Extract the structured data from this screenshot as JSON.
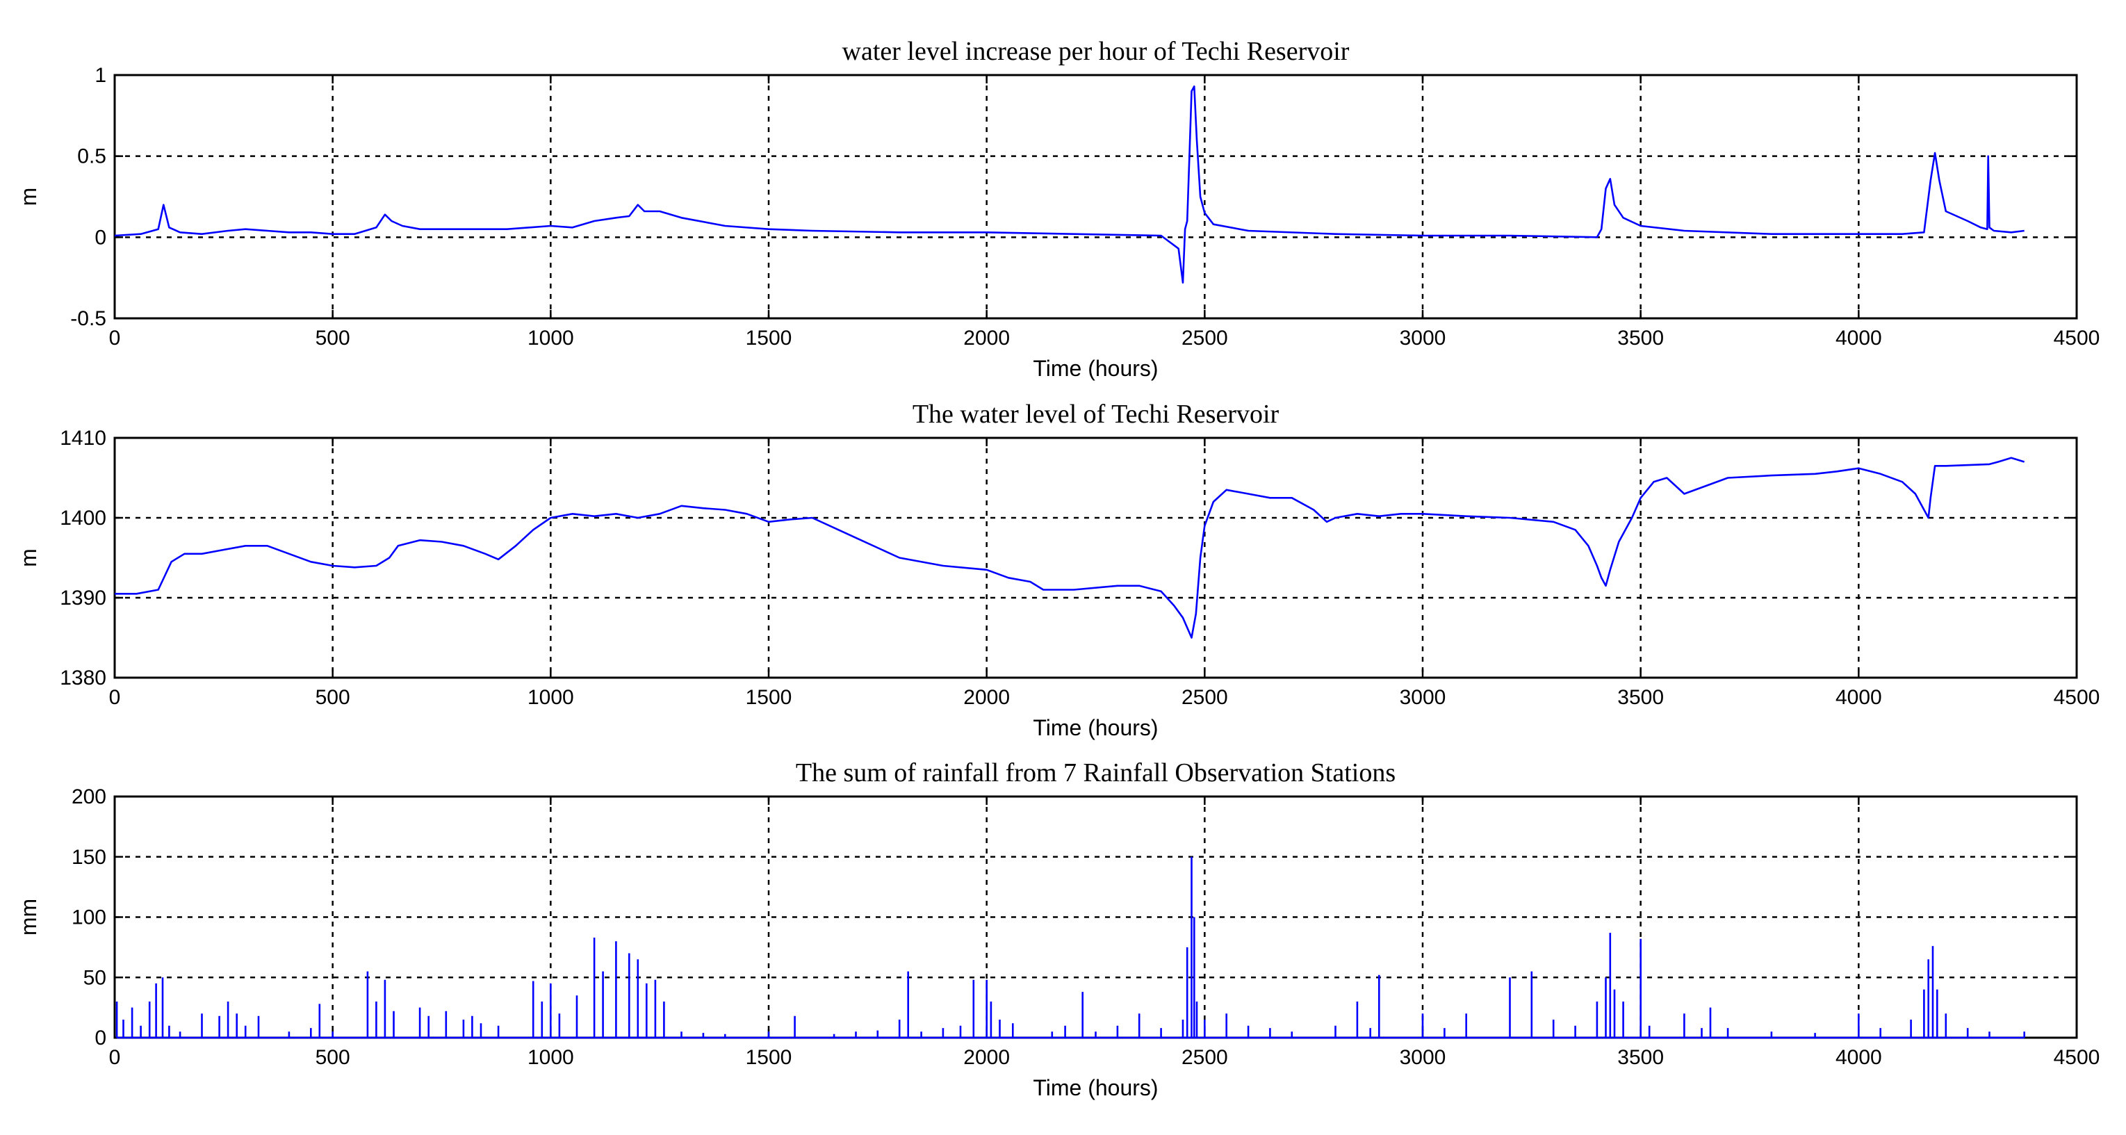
{
  "chart_data": [
    {
      "type": "line",
      "title": "water level increase per hour of Techi Reservoir",
      "xlabel": "Time (hours)",
      "ylabel": "m",
      "xlim": [
        0,
        4500
      ],
      "ylim": [
        -0.5,
        1
      ],
      "xticks": [
        0,
        500,
        1000,
        1500,
        2000,
        2500,
        3000,
        3500,
        4000,
        4500
      ],
      "yticks": [
        -0.5,
        0,
        0.5,
        1
      ],
      "ytick_labels": [
        "-0.5",
        "0",
        "0.5",
        "1"
      ],
      "grid": true,
      "color": "#0000ff",
      "series": [
        {
          "x": [
            0,
            60,
            100,
            112,
            125,
            150,
            200,
            260,
            300,
            350,
            400,
            450,
            500,
            550,
            600,
            620,
            635,
            660,
            700,
            800,
            900,
            1000,
            1050,
            1100,
            1150,
            1180,
            1200,
            1215,
            1250,
            1300,
            1400,
            1500,
            1600,
            1800,
            2000,
            2200,
            2400,
            2440,
            2450,
            2455,
            2460,
            2465,
            2470,
            2476,
            2482,
            2490,
            2500,
            2520,
            2600,
            2800,
            3000,
            3200,
            3400,
            3410,
            3420,
            3430,
            3440,
            3460,
            3500,
            3600,
            3800,
            4000,
            4100,
            4150,
            4165,
            4175,
            4185,
            4200,
            4250,
            4280,
            4295,
            4297,
            4300,
            4310,
            4350,
            4380
          ],
          "y": [
            0.01,
            0.02,
            0.05,
            0.2,
            0.06,
            0.03,
            0.02,
            0.04,
            0.05,
            0.04,
            0.03,
            0.03,
            0.02,
            0.02,
            0.06,
            0.14,
            0.1,
            0.07,
            0.05,
            0.05,
            0.05,
            0.07,
            0.06,
            0.1,
            0.12,
            0.13,
            0.2,
            0.16,
            0.16,
            0.12,
            0.07,
            0.05,
            0.04,
            0.03,
            0.03,
            0.02,
            0.01,
            -0.07,
            -0.28,
            0.05,
            0.1,
            0.5,
            0.9,
            0.93,
            0.6,
            0.25,
            0.15,
            0.08,
            0.04,
            0.02,
            0.01,
            0.01,
            0.0,
            0.05,
            0.3,
            0.36,
            0.2,
            0.12,
            0.07,
            0.04,
            0.02,
            0.02,
            0.02,
            0.03,
            0.35,
            0.52,
            0.35,
            0.16,
            0.1,
            0.06,
            0.05,
            0.5,
            0.06,
            0.04,
            0.03,
            0.04
          ]
        }
      ]
    },
    {
      "type": "line",
      "title": "The water level of Techi Reservoir",
      "xlabel": "Time (hours)",
      "ylabel": "m",
      "xlim": [
        0,
        4500
      ],
      "ylim": [
        1380,
        1410
      ],
      "xticks": [
        0,
        500,
        1000,
        1500,
        2000,
        2500,
        3000,
        3500,
        4000,
        4500
      ],
      "yticks": [
        1380,
        1390,
        1400,
        1410
      ],
      "ytick_labels": [
        "1380",
        "1390",
        "1400",
        "1410"
      ],
      "grid": true,
      "color": "#0000ff",
      "series": [
        {
          "x": [
            0,
            50,
            100,
            130,
            160,
            200,
            250,
            300,
            350,
            400,
            450,
            500,
            550,
            600,
            630,
            650,
            700,
            750,
            800,
            850,
            880,
            920,
            960,
            1000,
            1050,
            1100,
            1150,
            1200,
            1250,
            1300,
            1350,
            1400,
            1450,
            1500,
            1550,
            1600,
            1700,
            1800,
            1900,
            2000,
            2050,
            2100,
            2130,
            2200,
            2300,
            2350,
            2400,
            2430,
            2450,
            2470,
            2480,
            2490,
            2500,
            2520,
            2550,
            2600,
            2650,
            2700,
            2750,
            2780,
            2800,
            2850,
            2900,
            2950,
            3000,
            3100,
            3200,
            3300,
            3350,
            3380,
            3400,
            3410,
            3420,
            3430,
            3450,
            3480,
            3500,
            3530,
            3560,
            3580,
            3600,
            3650,
            3700,
            3800,
            3900,
            3950,
            4000,
            4050,
            4100,
            4130,
            4150,
            4160,
            4165,
            4175,
            4200,
            4300,
            4320,
            4350,
            4380
          ],
          "y": [
            1390.5,
            1390.5,
            1391.0,
            1394.5,
            1395.5,
            1395.5,
            1396.0,
            1396.5,
            1396.5,
            1395.5,
            1394.5,
            1394.0,
            1393.8,
            1394.0,
            1395.0,
            1396.5,
            1397.2,
            1397.0,
            1396.5,
            1395.5,
            1394.8,
            1396.5,
            1398.5,
            1400.0,
            1400.5,
            1400.2,
            1400.5,
            1400.0,
            1400.5,
            1401.5,
            1401.2,
            1401.0,
            1400.5,
            1399.5,
            1399.8,
            1400.0,
            1397.5,
            1395.0,
            1394.0,
            1393.5,
            1392.5,
            1392.0,
            1391.0,
            1391.0,
            1391.5,
            1391.5,
            1390.8,
            1389.0,
            1387.5,
            1385.0,
            1388.0,
            1395.0,
            1399.0,
            1402.0,
            1403.5,
            1403.0,
            1402.5,
            1402.5,
            1401.0,
            1399.5,
            1400.0,
            1400.5,
            1400.2,
            1400.5,
            1400.5,
            1400.2,
            1400.0,
            1399.5,
            1398.5,
            1396.5,
            1394.0,
            1392.5,
            1391.5,
            1393.5,
            1397.0,
            1400.0,
            1402.5,
            1404.5,
            1405.0,
            1404.0,
            1403.0,
            1404.0,
            1405.0,
            1405.3,
            1405.5,
            1405.8,
            1406.2,
            1405.5,
            1404.5,
            1403.0,
            1401.0,
            1400.0,
            1402.5,
            1406.5,
            1406.5,
            1406.7,
            1407.0,
            1407.5,
            1407.0
          ]
        }
      ]
    },
    {
      "type": "line",
      "title": "The sum of rainfall from 7 Rainfall Observation Stations",
      "xlabel": "Time (hours)",
      "ylabel": "mm",
      "xlim": [
        0,
        4500
      ],
      "ylim": [
        0,
        200
      ],
      "xticks": [
        0,
        500,
        1000,
        1500,
        2000,
        2500,
        3000,
        3500,
        4000,
        4500
      ],
      "yticks": [
        0,
        50,
        100,
        150,
        200
      ],
      "ytick_labels": [
        "0",
        "50",
        "100",
        "150",
        "200"
      ],
      "grid": true,
      "color": "#0000ff",
      "series": [
        {
          "x": [
            5,
            20,
            40,
            60,
            80,
            95,
            110,
            125,
            150,
            200,
            240,
            260,
            280,
            300,
            330,
            400,
            450,
            470,
            500,
            580,
            600,
            620,
            640,
            700,
            720,
            760,
            800,
            820,
            840,
            880,
            960,
            980,
            1000,
            1020,
            1060,
            1100,
            1120,
            1150,
            1180,
            1200,
            1220,
            1240,
            1260,
            1300,
            1350,
            1400,
            1500,
            1560,
            1650,
            1700,
            1750,
            1800,
            1820,
            1850,
            1900,
            1940,
            1970,
            2000,
            2010,
            2030,
            2060,
            2150,
            2180,
            2220,
            2250,
            2300,
            2350,
            2400,
            2450,
            2460,
            2470,
            2476,
            2482,
            2500,
            2550,
            2600,
            2650,
            2700,
            2800,
            2850,
            2880,
            2900,
            3000,
            3050,
            3100,
            3200,
            3250,
            3300,
            3350,
            3400,
            3420,
            3430,
            3440,
            3460,
            3500,
            3520,
            3600,
            3640,
            3660,
            3700,
            3800,
            3900,
            4000,
            4050,
            4120,
            4150,
            4160,
            4170,
            4180,
            4200,
            4250,
            4300,
            4380
          ],
          "y": [
            30,
            15,
            25,
            10,
            30,
            45,
            50,
            10,
            5,
            20,
            18,
            30,
            20,
            10,
            18,
            5,
            8,
            28,
            5,
            55,
            30,
            48,
            22,
            25,
            18,
            22,
            15,
            18,
            12,
            10,
            47,
            30,
            45,
            20,
            35,
            83,
            55,
            80,
            70,
            65,
            45,
            48,
            30,
            5,
            4,
            3,
            5,
            18,
            3,
            5,
            6,
            15,
            55,
            5,
            8,
            10,
            48,
            48,
            30,
            15,
            12,
            5,
            10,
            38,
            5,
            10,
            20,
            8,
            15,
            75,
            150,
            100,
            30,
            15,
            20,
            10,
            8,
            5,
            10,
            30,
            8,
            52,
            20,
            8,
            20,
            50,
            55,
            15,
            10,
            30,
            50,
            87,
            40,
            30,
            82,
            10,
            20,
            8,
            25,
            8,
            5,
            4,
            20,
            8,
            15,
            40,
            65,
            76,
            40,
            20,
            8,
            5,
            5
          ]
        }
      ]
    }
  ]
}
